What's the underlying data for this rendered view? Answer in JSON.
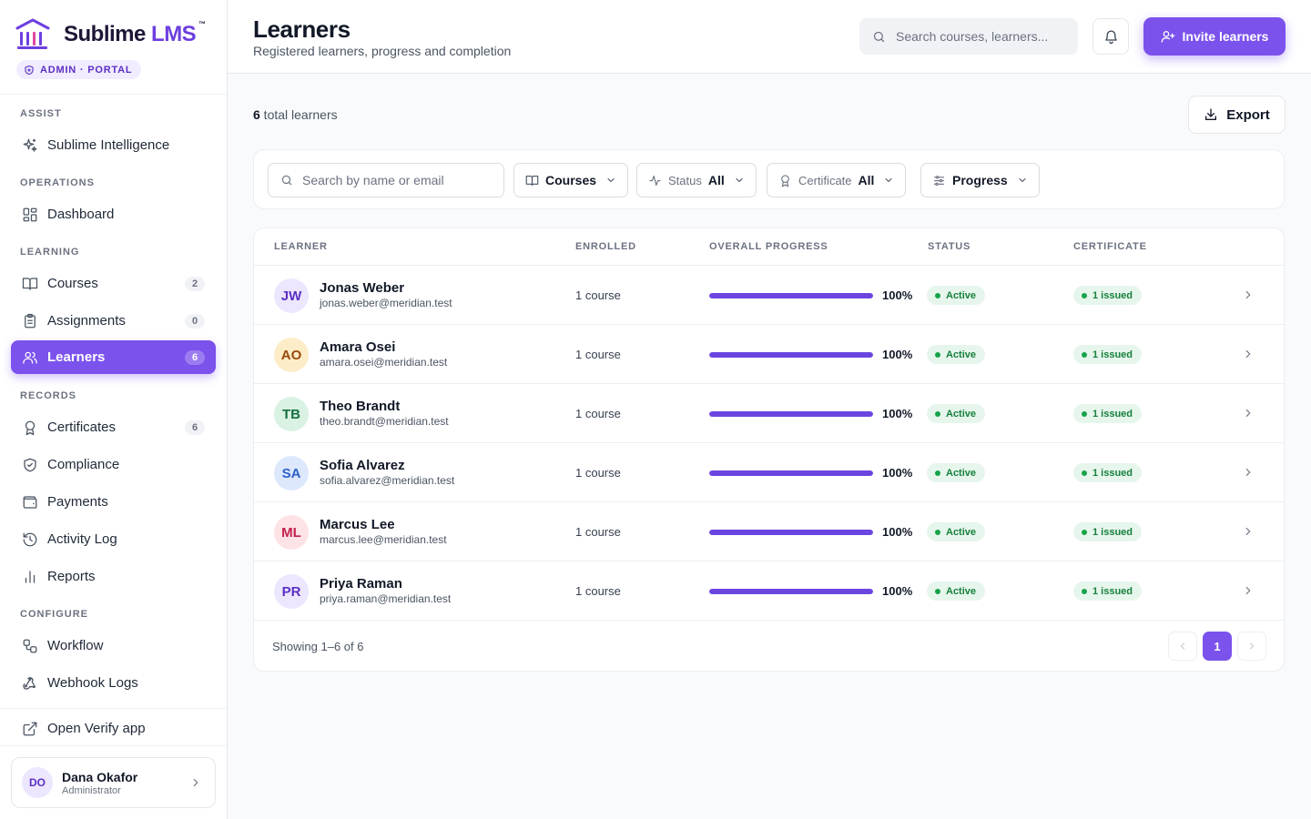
{
  "brand": {
    "name_main": "Sublime ",
    "name_accent": "LMS",
    "tm": "™",
    "portal_badge": "ADMIN · PORTAL"
  },
  "sidebar": {
    "sections": [
      "ASSIST",
      "OPERATIONS",
      "LEARNING",
      "RECORDS",
      "CONFIGURE"
    ],
    "items": [
      {
        "label": "Sublime Intelligence",
        "icon": "sparkles-icon"
      },
      {
        "label": "Dashboard",
        "icon": "dashboard-grid-icon"
      },
      {
        "label": "Courses",
        "icon": "book-icon",
        "count": "2"
      },
      {
        "label": "Assignments",
        "icon": "clipboard-icon",
        "count": "0"
      },
      {
        "label": "Learners",
        "icon": "users-icon",
        "count": "6",
        "active": true
      },
      {
        "label": "Certificates",
        "icon": "award-icon",
        "count": "6"
      },
      {
        "label": "Compliance",
        "icon": "shield-check-icon"
      },
      {
        "label": "Payments",
        "icon": "wallet-icon"
      },
      {
        "label": "Activity Log",
        "icon": "history-icon"
      },
      {
        "label": "Reports",
        "icon": "bar-chart-icon"
      },
      {
        "label": "Workflow",
        "icon": "workflow-icon"
      },
      {
        "label": "Webhook Logs",
        "icon": "webhook-icon"
      },
      {
        "label": "Open Verify app",
        "icon": "external-link-icon"
      }
    ],
    "user": {
      "initials": "DO",
      "name": "Dana Okafor",
      "role": "Administrator"
    }
  },
  "header": {
    "title": "Learners",
    "subtitle": "Registered learners, progress and completion",
    "search_placeholder": "Search courses, learners...",
    "invite_label": "Invite learners"
  },
  "summary": {
    "count": "6",
    "suffix": " total learners",
    "export_label": "Export"
  },
  "filters": {
    "search_placeholder": "Search by name or email",
    "courses_label": "Courses",
    "status_label": "Status",
    "status_value": "All",
    "certificate_label": "Certificate",
    "certificate_value": "All",
    "progress_label": "Progress"
  },
  "table": {
    "columns": [
      "LEARNER",
      "ENROLLED",
      "OVERALL PROGRESS",
      "STATUS",
      "CERTIFICATE"
    ],
    "rows": [
      {
        "initials": "JW",
        "name": "Jonas Weber",
        "email": "jonas.weber@meridian.test",
        "enrolled": "1 course",
        "progress": 100,
        "progress_text": "100%",
        "status": "Active",
        "certificate": "1 issued",
        "avatar_bg": "#ece6ff",
        "avatar_fg": "#5b30c4"
      },
      {
        "initials": "AO",
        "name": "Amara Osei",
        "email": "amara.osei@meridian.test",
        "enrolled": "1 course",
        "progress": 100,
        "progress_text": "100%",
        "status": "Active",
        "certificate": "1 issued",
        "avatar_bg": "#fdecc8",
        "avatar_fg": "#9a4a0b"
      },
      {
        "initials": "TB",
        "name": "Theo Brandt",
        "email": "theo.brandt@meridian.test",
        "enrolled": "1 course",
        "progress": 100,
        "progress_text": "100%",
        "status": "Active",
        "certificate": "1 issued",
        "avatar_bg": "#d9f2e3",
        "avatar_fg": "#15703f"
      },
      {
        "initials": "SA",
        "name": "Sofia Alvarez",
        "email": "sofia.alvarez@meridian.test",
        "enrolled": "1 course",
        "progress": 100,
        "progress_text": "100%",
        "status": "Active",
        "certificate": "1 issued",
        "avatar_bg": "#dde8fd",
        "avatar_fg": "#2f5fc9"
      },
      {
        "initials": "ML",
        "name": "Marcus Lee",
        "email": "marcus.lee@meridian.test",
        "enrolled": "1 course",
        "progress": 100,
        "progress_text": "100%",
        "status": "Active",
        "certificate": "1 issued",
        "avatar_bg": "#fde2e6",
        "avatar_fg": "#c21f4a"
      },
      {
        "initials": "PR",
        "name": "Priya Raman",
        "email": "priya.raman@meridian.test",
        "enrolled": "1 course",
        "progress": 100,
        "progress_text": "100%",
        "status": "Active",
        "certificate": "1 issued",
        "avatar_bg": "#ece6ff",
        "avatar_fg": "#5b30c4"
      }
    ],
    "footer": {
      "showing": "Showing 1–6 of 6",
      "current_page": "1"
    }
  },
  "colors": {
    "accent": "#7b52ec",
    "success": "#15803d",
    "success_bg": "#e7f6ec"
  }
}
